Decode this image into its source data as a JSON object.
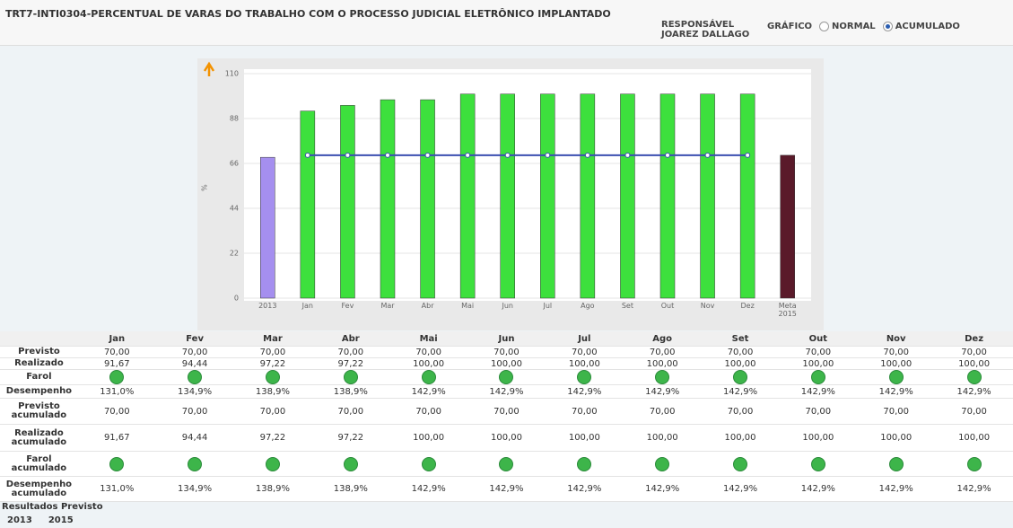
{
  "header": {
    "title": "TRT7-INTI0304-PERCENTUAL DE VARAS DO TRABALHO COM O PROCESSO JUDICIAL ELETRÔNICO IMPLANTADO",
    "responsible_label": "RESPONSÁVEL",
    "responsible_name": "JOAREZ DALLAGO",
    "chart_label": "GRÁFICO",
    "options": [
      "NORMAL",
      "ACUMULADO"
    ],
    "selected": "ACUMULADO"
  },
  "chart_data": {
    "type": "bar",
    "ylabel": "%",
    "categories": [
      "2013",
      "Jan",
      "Fev",
      "Mar",
      "Abr",
      "Mai",
      "Jun",
      "Jul",
      "Ago",
      "Set",
      "Out",
      "Nov",
      "Dez",
      "Meta 2015"
    ],
    "values": [
      69,
      91.67,
      94.44,
      97.22,
      97.22,
      100,
      100,
      100,
      100,
      100,
      100,
      100,
      100,
      70
    ],
    "colors": [
      "#a58fef",
      "#3de03d",
      "#3de03d",
      "#3de03d",
      "#3de03d",
      "#3de03d",
      "#3de03d",
      "#3de03d",
      "#3de03d",
      "#3de03d",
      "#3de03d",
      "#3de03d",
      "#3de03d",
      "#5a1a2a"
    ],
    "line_values": [
      null,
      70,
      70,
      70,
      70,
      70,
      70,
      70,
      70,
      70,
      70,
      70,
      70,
      null
    ],
    "line_color": "#3b4fb0",
    "ylim": [
      0,
      110
    ],
    "yticks": [
      0,
      22,
      44,
      66,
      88,
      110
    ],
    "grid": true
  },
  "table": {
    "columns": [
      "Jan",
      "Fev",
      "Mar",
      "Abr",
      "Mai",
      "Jun",
      "Jul",
      "Ago",
      "Set",
      "Out",
      "Nov",
      "Dez"
    ],
    "rows": [
      {
        "label": "Previsto",
        "values": [
          "70,00",
          "70,00",
          "70,00",
          "70,00",
          "70,00",
          "70,00",
          "70,00",
          "70,00",
          "70,00",
          "70,00",
          "70,00",
          "70,00"
        ]
      },
      {
        "label": "Realizado",
        "values": [
          "91,67",
          "94,44",
          "97,22",
          "97,22",
          "100,00",
          "100,00",
          "100,00",
          "100,00",
          "100,00",
          "100,00",
          "100,00",
          "100,00"
        ]
      },
      {
        "label": "Farol",
        "color": "#3db54a"
      },
      {
        "label": "Desempenho",
        "values": [
          "131,0%",
          "134,9%",
          "138,9%",
          "138,9%",
          "142,9%",
          "142,9%",
          "142,9%",
          "142,9%",
          "142,9%",
          "142,9%",
          "142,9%",
          "142,9%"
        ]
      },
      {
        "label": "Previsto acumulado",
        "values": [
          "70,00",
          "70,00",
          "70,00",
          "70,00",
          "70,00",
          "70,00",
          "70,00",
          "70,00",
          "70,00",
          "70,00",
          "70,00",
          "70,00"
        ]
      },
      {
        "label": "Realizado acumulado",
        "values": [
          "91,67",
          "94,44",
          "97,22",
          "97,22",
          "100,00",
          "100,00",
          "100,00",
          "100,00",
          "100,00",
          "100,00",
          "100,00",
          "100,00"
        ]
      },
      {
        "label": "Farol acumulado",
        "color": "#3db54a"
      },
      {
        "label": "Desempenho acumulado",
        "values": [
          "131,0%",
          "134,9%",
          "138,9%",
          "138,9%",
          "142,9%",
          "142,9%",
          "142,9%",
          "142,9%",
          "142,9%",
          "142,9%",
          "142,9%",
          "142,9%"
        ]
      }
    ]
  },
  "footer": {
    "label": "Resultados Previsto",
    "years": [
      "2013",
      "2015"
    ]
  }
}
